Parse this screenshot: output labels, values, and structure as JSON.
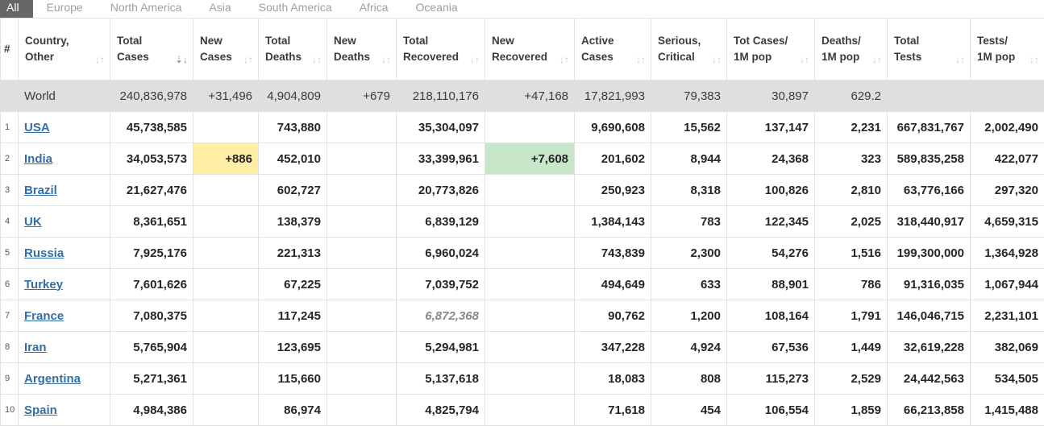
{
  "tabs": [
    "All",
    "Europe",
    "North America",
    "Asia",
    "South America",
    "Africa",
    "Oceania"
  ],
  "active_tab": 0,
  "columns": [
    {
      "key": "idx",
      "label": "#",
      "sort": false
    },
    {
      "key": "country",
      "label": "Country,\nOther",
      "sort": true
    },
    {
      "key": "total_cases",
      "label": "Total\nCases",
      "sort": true,
      "sorted": true
    },
    {
      "key": "new_cases",
      "label": "New\nCases",
      "sort": true
    },
    {
      "key": "total_deaths",
      "label": "Total\nDeaths",
      "sort": true
    },
    {
      "key": "new_deaths",
      "label": "New\nDeaths",
      "sort": true
    },
    {
      "key": "total_recovered",
      "label": "Total\nRecovered",
      "sort": true
    },
    {
      "key": "new_recovered",
      "label": "New\nRecovered",
      "sort": true
    },
    {
      "key": "active_cases",
      "label": "Active\nCases",
      "sort": true
    },
    {
      "key": "serious_critical",
      "label": "Serious,\nCritical",
      "sort": true
    },
    {
      "key": "tot_cases_1m",
      "label": "Tot Cases/\n1M pop",
      "sort": true
    },
    {
      "key": "deaths_1m",
      "label": "Deaths/\n1M pop",
      "sort": true
    },
    {
      "key": "total_tests",
      "label": "Total\nTests",
      "sort": true
    },
    {
      "key": "tests_1m",
      "label": "Tests/\n1M pop",
      "sort": true
    }
  ],
  "world": {
    "country": "World",
    "total_cases": "240,836,978",
    "new_cases": "+31,496",
    "total_deaths": "4,904,809",
    "new_deaths": "+679",
    "total_recovered": "218,110,176",
    "new_recovered": "+47,168",
    "active_cases": "17,821,993",
    "serious_critical": "79,383",
    "tot_cases_1m": "30,897",
    "deaths_1m": "629.2",
    "total_tests": "",
    "tests_1m": ""
  },
  "rows": [
    {
      "idx": "1",
      "country": "USA",
      "total_cases": "45,738,585",
      "new_cases": "",
      "total_deaths": "743,880",
      "new_deaths": "",
      "total_recovered": "35,304,097",
      "new_recovered": "",
      "active_cases": "9,690,608",
      "serious_critical": "15,562",
      "tot_cases_1m": "137,147",
      "deaths_1m": "2,231",
      "total_tests": "667,831,767",
      "tests_1m": "2,002,490"
    },
    {
      "idx": "2",
      "country": "India",
      "total_cases": "34,053,573",
      "new_cases": "+886",
      "total_deaths": "452,010",
      "new_deaths": "",
      "total_recovered": "33,399,961",
      "new_recovered": "+7,608",
      "active_cases": "201,602",
      "serious_critical": "8,944",
      "tot_cases_1m": "24,368",
      "deaths_1m": "323",
      "total_tests": "589,835,258",
      "tests_1m": "422,077"
    },
    {
      "idx": "3",
      "country": "Brazil",
      "total_cases": "21,627,476",
      "new_cases": "",
      "total_deaths": "602,727",
      "new_deaths": "",
      "total_recovered": "20,773,826",
      "new_recovered": "",
      "active_cases": "250,923",
      "serious_critical": "8,318",
      "tot_cases_1m": "100,826",
      "deaths_1m": "2,810",
      "total_tests": "63,776,166",
      "tests_1m": "297,320"
    },
    {
      "idx": "4",
      "country": "UK",
      "total_cases": "8,361,651",
      "new_cases": "",
      "total_deaths": "138,379",
      "new_deaths": "",
      "total_recovered": "6,839,129",
      "new_recovered": "",
      "active_cases": "1,384,143",
      "serious_critical": "783",
      "tot_cases_1m": "122,345",
      "deaths_1m": "2,025",
      "total_tests": "318,440,917",
      "tests_1m": "4,659,315"
    },
    {
      "idx": "5",
      "country": "Russia",
      "total_cases": "7,925,176",
      "new_cases": "",
      "total_deaths": "221,313",
      "new_deaths": "",
      "total_recovered": "6,960,024",
      "new_recovered": "",
      "active_cases": "743,839",
      "serious_critical": "2,300",
      "tot_cases_1m": "54,276",
      "deaths_1m": "1,516",
      "total_tests": "199,300,000",
      "tests_1m": "1,364,928"
    },
    {
      "idx": "6",
      "country": "Turkey",
      "total_cases": "7,601,626",
      "new_cases": "",
      "total_deaths": "67,225",
      "new_deaths": "",
      "total_recovered": "7,039,752",
      "new_recovered": "",
      "active_cases": "494,649",
      "serious_critical": "633",
      "tot_cases_1m": "88,901",
      "deaths_1m": "786",
      "total_tests": "91,316,035",
      "tests_1m": "1,067,944"
    },
    {
      "idx": "7",
      "country": "France",
      "total_cases": "7,080,375",
      "new_cases": "",
      "total_deaths": "117,245",
      "new_deaths": "",
      "total_recovered": "6,872,368",
      "new_recovered": "",
      "active_cases": "90,762",
      "serious_critical": "1,200",
      "tot_cases_1m": "108,164",
      "deaths_1m": "1,791",
      "total_tests": "146,046,715",
      "tests_1m": "2,231,101",
      "recovered_estimated": true
    },
    {
      "idx": "8",
      "country": "Iran",
      "total_cases": "5,765,904",
      "new_cases": "",
      "total_deaths": "123,695",
      "new_deaths": "",
      "total_recovered": "5,294,981",
      "new_recovered": "",
      "active_cases": "347,228",
      "serious_critical": "4,924",
      "tot_cases_1m": "67,536",
      "deaths_1m": "1,449",
      "total_tests": "32,619,228",
      "tests_1m": "382,069"
    },
    {
      "idx": "9",
      "country": "Argentina",
      "total_cases": "5,271,361",
      "new_cases": "",
      "total_deaths": "115,660",
      "new_deaths": "",
      "total_recovered": "5,137,618",
      "new_recovered": "",
      "active_cases": "18,083",
      "serious_critical": "808",
      "tot_cases_1m": "115,273",
      "deaths_1m": "2,529",
      "total_tests": "24,442,563",
      "tests_1m": "534,505"
    },
    {
      "idx": "10",
      "country": "Spain",
      "total_cases": "4,984,386",
      "new_cases": "",
      "total_deaths": "86,974",
      "new_deaths": "",
      "total_recovered": "4,825,794",
      "new_recovered": "",
      "active_cases": "71,618",
      "serious_critical": "454",
      "tot_cases_1m": "106,554",
      "deaths_1m": "1,859",
      "total_tests": "66,213,858",
      "tests_1m": "1,415,488"
    }
  ],
  "colors": {
    "tab_active_bg": "#666666",
    "world_row_bg": "#dfdfdf",
    "new_cases_highlight": "#ffeea6",
    "new_recovered_highlight": "#c8e6c9",
    "country_link": "#336fa6"
  },
  "icons": {
    "sort": "sort-arrows-icon"
  }
}
